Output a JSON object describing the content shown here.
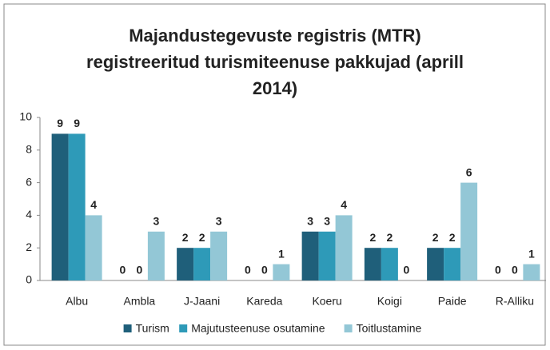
{
  "chart_data": {
    "type": "bar",
    "title": "Majandustegevuste registris  (MTR) registreeritud turismiteenuse pakkujad (aprill 2014)",
    "categories": [
      "Albu",
      "Ambla",
      "J-Jaani",
      "Kareda",
      "Koeru",
      "Koigi",
      "Paide",
      "R-Alliku"
    ],
    "series": [
      {
        "name": "Turism",
        "color": "#1f5f7a",
        "values": [
          9,
          0,
          2,
          0,
          3,
          2,
          2,
          0
        ]
      },
      {
        "name": "Majutusteenuse osutamine",
        "color": "#2e9ab8",
        "values": [
          9,
          0,
          2,
          0,
          3,
          2,
          2,
          0
        ]
      },
      {
        "name": "Toitlustamine",
        "color": "#93c7d6",
        "values": [
          4,
          3,
          3,
          1,
          4,
          0,
          6,
          1
        ]
      }
    ],
    "ylim": [
      0,
      10
    ],
    "yticks": [
      0,
      2,
      4,
      6,
      8,
      10
    ],
    "grid": false,
    "legend": "bottom"
  }
}
